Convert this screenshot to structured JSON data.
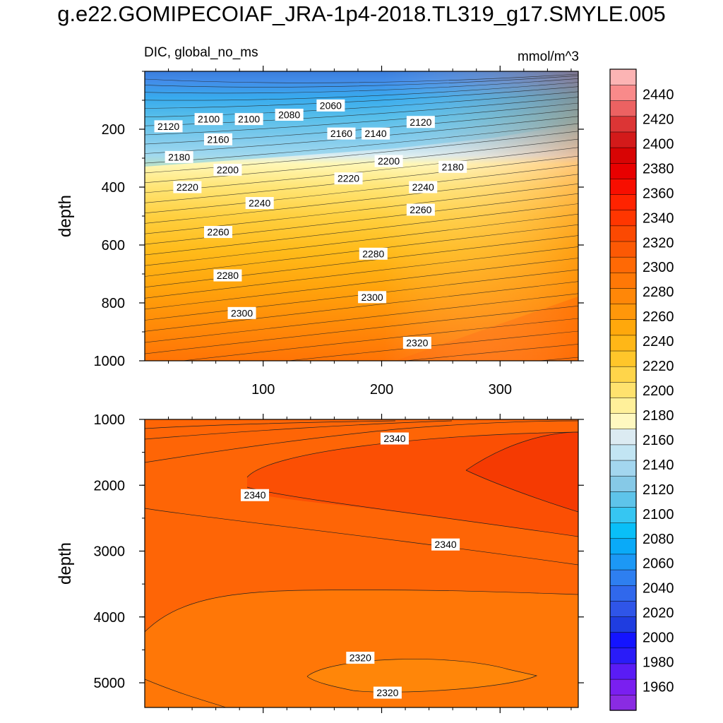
{
  "title": "g.e22.GOMIPECOIAF_JRA-1p4-2018.TL319_g17.SMYLE.005",
  "subtitle_left": "DIC, global_no_ms",
  "subtitle_right": "mmol/m^3",
  "chart_data": [
    {
      "type": "heatmap",
      "name": "upper-panel",
      "xlabel": "",
      "ylabel": "depth",
      "xlim": [
        0,
        366
      ],
      "ylim": [
        1000,
        0
      ],
      "xticks": [
        100,
        200,
        300
      ],
      "xtick_labels": [
        "100",
        "200",
        "300"
      ],
      "yticks": [
        200,
        400,
        600,
        800,
        1000
      ],
      "ytick_labels": [
        "200",
        "400",
        "600",
        "800",
        "1000"
      ],
      "contour_labels": [
        {
          "text": "2120",
          "x": 20,
          "y": 190
        },
        {
          "text": "2100",
          "x": 54,
          "y": 165
        },
        {
          "text": "2100",
          "x": 88,
          "y": 165
        },
        {
          "text": "2080",
          "x": 122,
          "y": 150
        },
        {
          "text": "2060",
          "x": 157,
          "y": 118
        },
        {
          "text": "2140",
          "x": 195,
          "y": 215
        },
        {
          "text": "2120",
          "x": 233,
          "y": 175
        },
        {
          "text": "2160",
          "x": 62,
          "y": 235
        },
        {
          "text": "2160",
          "x": 166,
          "y": 215
        },
        {
          "text": "2180",
          "x": 260,
          "y": 330
        },
        {
          "text": "2180",
          "x": 29,
          "y": 296
        },
        {
          "text": "2200",
          "x": 70,
          "y": 340
        },
        {
          "text": "2200",
          "x": 206,
          "y": 310
        },
        {
          "text": "2220",
          "x": 172,
          "y": 370
        },
        {
          "text": "2220",
          "x": 36,
          "y": 400
        },
        {
          "text": "2240",
          "x": 97,
          "y": 455
        },
        {
          "text": "2240",
          "x": 235,
          "y": 400
        },
        {
          "text": "2260",
          "x": 233,
          "y": 478
        },
        {
          "text": "2260",
          "x": 62,
          "y": 555
        },
        {
          "text": "2280",
          "x": 193,
          "y": 630
        },
        {
          "text": "2280",
          "x": 70,
          "y": 705
        },
        {
          "text": "2300",
          "x": 192,
          "y": 780
        },
        {
          "text": "2300",
          "x": 82,
          "y": 835
        },
        {
          "text": "2320",
          "x": 230,
          "y": 938
        }
      ]
    },
    {
      "type": "heatmap",
      "name": "lower-panel",
      "xlabel": "",
      "ylabel": "depth",
      "xlim": [
        0,
        366
      ],
      "ylim": [
        5375,
        1000
      ],
      "yticks": [
        1000,
        2000,
        3000,
        4000,
        5000
      ],
      "ytick_labels": [
        "1000",
        "2000",
        "3000",
        "4000",
        "5000"
      ],
      "contour_labels": [
        {
          "text": "2340",
          "x": 211,
          "y": 1290
        },
        {
          "text": "2340",
          "x": 93,
          "y": 2150
        },
        {
          "text": "2340",
          "x": 254,
          "y": 2900
        },
        {
          "text": "2320",
          "x": 182,
          "y": 4620
        },
        {
          "text": "2320",
          "x": 205,
          "y": 5150
        }
      ]
    },
    {
      "type": "colorbar",
      "name": "colorbar",
      "levels": [
        1960,
        1980,
        2000,
        2020,
        2040,
        2060,
        2080,
        2100,
        2120,
        2140,
        2160,
        2180,
        2200,
        2220,
        2240,
        2260,
        2280,
        2300,
        2320,
        2340,
        2360,
        2380,
        2400,
        2420,
        2440
      ],
      "labels": [
        "1960",
        "1980",
        "2000",
        "2020",
        "2040",
        "2060",
        "2080",
        "2100",
        "2120",
        "2140",
        "2160",
        "2180",
        "2200",
        "2220",
        "2240",
        "2260",
        "2280",
        "2300",
        "2320",
        "2340",
        "2360",
        "2380",
        "2400",
        "2420",
        "2440"
      ],
      "colors": [
        "#8a2be2",
        "#7a1ff0",
        "#5a1cf5",
        "#2a1cf8",
        "#1414ff",
        "#1f3de0",
        "#2f55e8",
        "#3068ec",
        "#2e7ff0",
        "#1c98f5",
        "#0aaaf8",
        "#09bff8",
        "#36c6f2",
        "#5ec4ea",
        "#86c9e7",
        "#a3d6ef",
        "#c2e5f3",
        "#dcebf2",
        "#fff8c0",
        "#fff09a",
        "#ffe26e",
        "#ffd54a",
        "#ffc62a",
        "#ffb717",
        "#ffa80c",
        "#ff970a",
        "#ff8708",
        "#ff7806",
        "#ff6905",
        "#fc5904",
        "#fb4902",
        "#ff3600",
        "#ff2300",
        "#f80e00",
        "#e80000",
        "#d80404",
        "#d31a1a",
        "#dc3535",
        "#ec6262",
        "#f98a8a",
        "#fcb4b4"
      ]
    }
  ]
}
